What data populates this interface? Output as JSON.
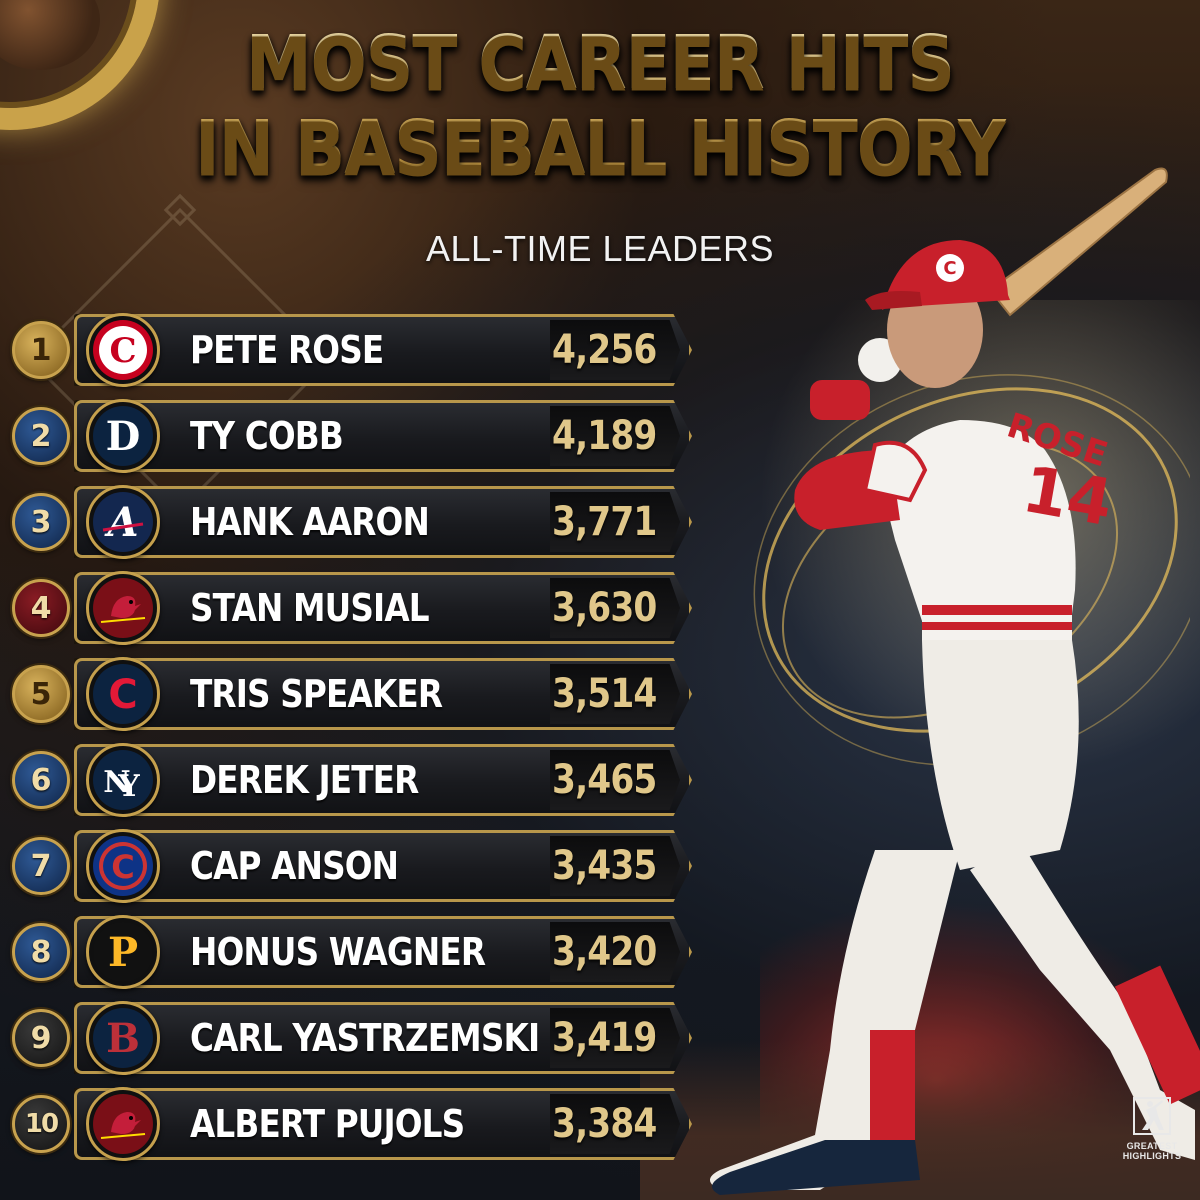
{
  "title": {
    "line1": "MOST CAREER HITS",
    "line2": "IN BASEBALL HISTORY",
    "subtitle": "ALL-TIME LEADERS"
  },
  "leaders": [
    {
      "rank": "1",
      "name": "PETE ROSE",
      "hits": "4,256",
      "team_logo": "cincinnati-reds-logo-icon",
      "rank_color": "gold"
    },
    {
      "rank": "2",
      "name": "TY COBB",
      "hits": "4,189",
      "team_logo": "detroit-tigers-logo-icon",
      "rank_color": "blue"
    },
    {
      "rank": "3",
      "name": "HANK AARON",
      "hits": "3,771",
      "team_logo": "atlanta-braves-logo-icon",
      "rank_color": "blue"
    },
    {
      "rank": "4",
      "name": "STAN MUSIAL",
      "hits": "3,630",
      "team_logo": "st-louis-cardinals-logo-icon",
      "rank_color": "red"
    },
    {
      "rank": "5",
      "name": "TRIS SPEAKER",
      "hits": "3,514",
      "team_logo": "cleveland-logo-icon",
      "rank_color": "gold"
    },
    {
      "rank": "6",
      "name": "DEREK JETER",
      "hits": "3,465",
      "team_logo": "new-york-yankees-logo-icon",
      "rank_color": "blue"
    },
    {
      "rank": "7",
      "name": "CAP ANSON",
      "hits": "3,435",
      "team_logo": "chicago-cubs-logo-icon",
      "rank_color": "blue"
    },
    {
      "rank": "8",
      "name": "HONUS WAGNER",
      "hits": "3,420",
      "team_logo": "pittsburgh-pirates-logo-icon",
      "rank_color": "blue"
    },
    {
      "rank": "9",
      "name": "CARL YASTRZEMSKI",
      "hits": "3,419",
      "team_logo": "boston-red-sox-logo-icon",
      "rank_color": "dark"
    },
    {
      "rank": "10",
      "name": "ALBERT PUJOLS",
      "hits": "3,384",
      "team_logo": "st-louis-cardinals-logo-icon",
      "rank_color": "dark"
    }
  ],
  "player": {
    "jersey_name": "ROSE",
    "jersey_number": "14",
    "cap_letter": "C",
    "colors": {
      "uniform": "#f4f2ee",
      "trim": "#c8202b",
      "gold": "#c9a24a"
    }
  },
  "watermark": {
    "line1": "GREATEST",
    "line2": "HIGHLIGHTS",
    "icon": "batter-silhouette-icon"
  },
  "colors": {
    "title_gold": "#e9cf8c",
    "hits_gold": "#e0c78a",
    "row_border": "#b8974b"
  }
}
